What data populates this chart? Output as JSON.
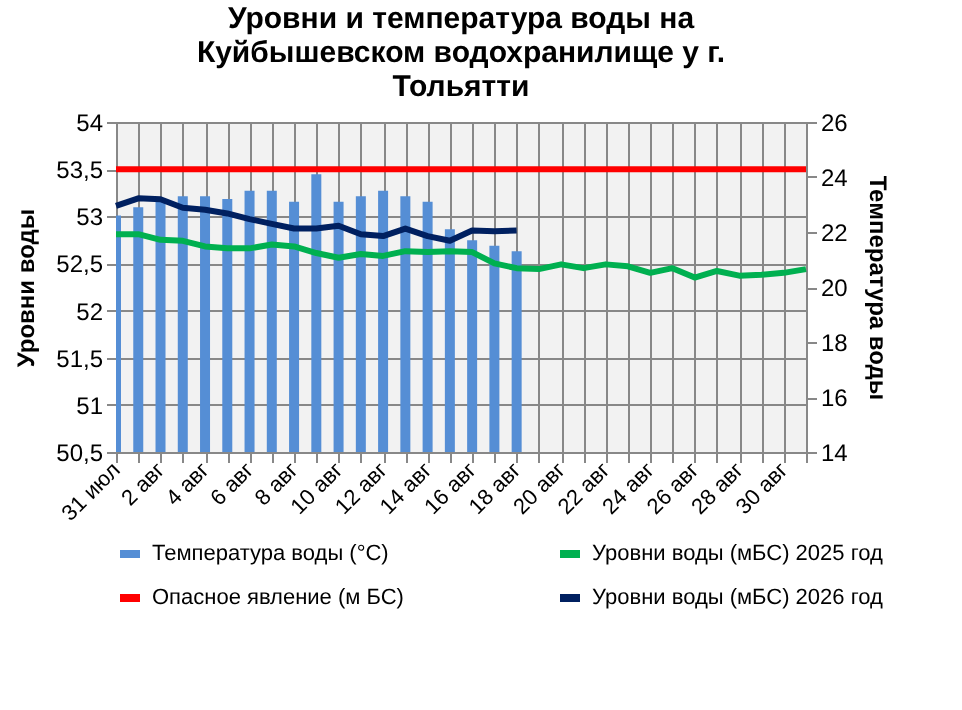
{
  "chart_data": {
    "type": "line",
    "title": "Уровни  и температура  воды на Куйбышевском водохранилище у г. Тольятти",
    "ylabel": "Уровни воды",
    "y2label": "Температура воды",
    "categories": [
      "31 июл",
      null,
      "2 авг",
      null,
      "4 авг",
      null,
      "6 авг",
      null,
      "8 авг",
      null,
      "10 авг",
      null,
      "12 авг",
      null,
      "14 авг",
      null,
      "16 авг",
      null,
      "18 авг",
      null,
      "20 авг",
      null,
      "22 авг",
      null,
      "24 авг",
      null,
      "26 авг",
      null,
      "28 авг",
      null,
      "30 авг",
      null
    ],
    "series": [
      {
        "name": "Температура воды (°С)",
        "type": "bar",
        "axis": "y2",
        "color": "#558ed5",
        "values": [
          22.6,
          22.9,
          23.1,
          23.3,
          23.3,
          23.2,
          23.5,
          23.5,
          23.1,
          24.1,
          23.1,
          23.3,
          23.5,
          23.3,
          23.1,
          22.1,
          21.7,
          21.5,
          21.3,
          null,
          null,
          null,
          null,
          null,
          null,
          null,
          null,
          null,
          null,
          null,
          null,
          null
        ]
      },
      {
        "name": "Уровни воды (мБС) 2025 год",
        "color": "#00b050",
        "values": [
          52.81,
          52.81,
          52.75,
          52.74,
          52.68,
          52.66,
          52.66,
          52.7,
          52.68,
          52.61,
          52.56,
          52.6,
          52.58,
          52.63,
          52.62,
          52.63,
          52.62,
          52.5,
          52.45,
          52.44,
          52.49,
          52.45,
          52.49,
          52.47,
          52.4,
          52.45,
          52.35,
          52.42,
          52.37,
          52.38,
          52.4,
          52.44
        ]
      },
      {
        "name": "Опасное явление    (м БС)",
        "color": "#ff0000",
        "values": [
          53.5,
          53.5,
          53.5,
          53.5,
          53.5,
          53.5,
          53.5,
          53.5,
          53.5,
          53.5,
          53.5,
          53.5,
          53.5,
          53.5,
          53.5,
          53.5,
          53.5,
          53.5,
          53.5,
          53.5,
          53.5,
          53.5,
          53.5,
          53.5,
          53.5,
          53.5,
          53.5,
          53.5,
          53.5,
          53.5,
          53.5,
          53.5
        ]
      },
      {
        "name": "Уровни воды (мБС) 2026 год",
        "color": "#002060",
        "values": [
          53.11,
          53.19,
          53.18,
          53.09,
          53.07,
          53.03,
          52.97,
          52.92,
          52.87,
          52.87,
          52.9,
          52.81,
          52.79,
          52.87,
          52.79,
          52.74,
          52.85,
          52.84,
          52.85,
          null,
          null,
          null,
          null,
          null,
          null,
          null,
          null,
          null,
          null,
          null,
          null,
          null
        ]
      }
    ],
    "ylim": [
      50.5,
      54
    ],
    "yticks": [
      {
        "value": 50.5,
        "label": "50,5"
      },
      51,
      {
        "value": 51.5,
        "label": "51,5"
      },
      52,
      {
        "value": 52.5,
        "label": "52,5"
      },
      53,
      {
        "value": 53.5,
        "label": "53,5"
      },
      54
    ],
    "y2lim": [
      14,
      26
    ],
    "y2ticks": [
      14,
      16,
      18,
      20,
      22,
      24,
      26
    ],
    "grid": true,
    "legend": "bottom",
    "marker": "none",
    "line_style": "solid"
  }
}
